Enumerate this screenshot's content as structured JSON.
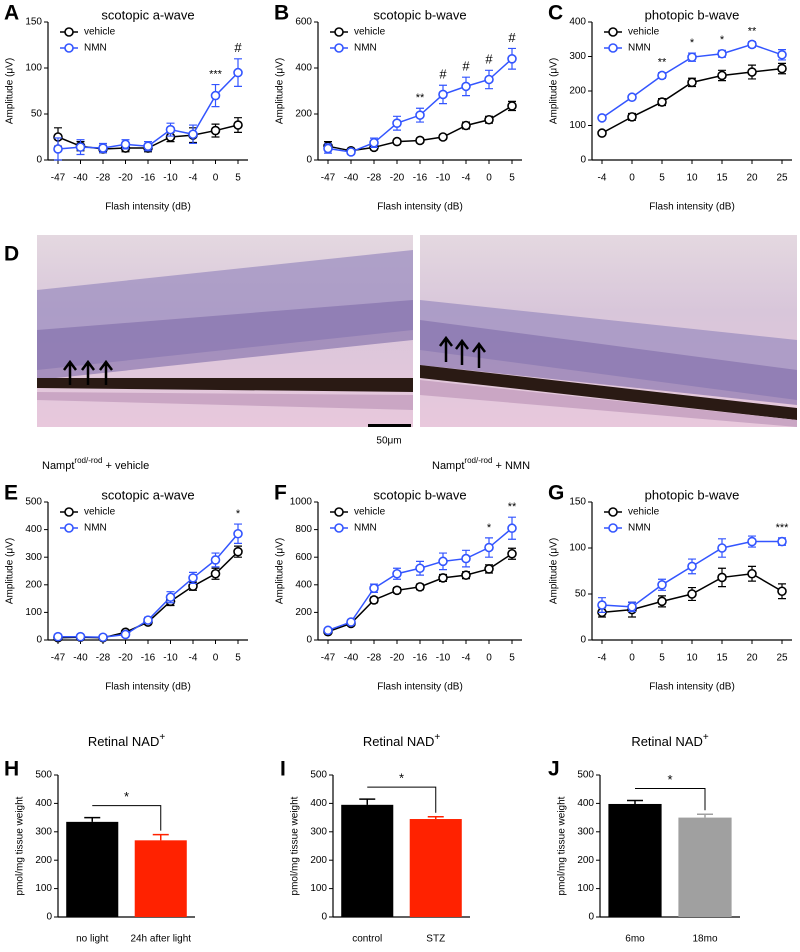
{
  "chart_data": [
    {
      "type": "line",
      "panel": "A",
      "title": "scotopic a-wave",
      "xlabel": "Flash intensity (dB)",
      "ylabel": "Amplitude (μV)",
      "categories": [
        -47,
        -40,
        -28,
        -20,
        -16,
        -10,
        -4,
        0,
        5
      ],
      "ylim": [
        0,
        150
      ],
      "yticks": [
        0,
        50,
        100,
        150
      ],
      "legend": "upper left",
      "series": [
        {
          "name": "vehicle",
          "color": "#000000",
          "values": [
            25,
            15,
            12,
            13,
            13,
            25,
            27,
            32,
            38
          ],
          "errors": [
            10,
            5,
            4,
            4,
            4,
            5,
            8,
            7,
            8
          ]
        },
        {
          "name": "NMN",
          "color": "#3355ff",
          "values": [
            12,
            14,
            13,
            17,
            15,
            33,
            28,
            70,
            95
          ],
          "errors": [
            12,
            8,
            5,
            5,
            5,
            7,
            10,
            12,
            15
          ]
        }
      ],
      "annotations": [
        {
          "at": 0,
          "text": "***"
        },
        {
          "at": 5,
          "text": "#"
        }
      ]
    },
    {
      "type": "line",
      "panel": "B",
      "title": "scotopic b-wave",
      "xlabel": "Flash intensity (dB)",
      "ylabel": "Amplitude (μV)",
      "categories": [
        -47,
        -40,
        -28,
        -20,
        -16,
        -10,
        -4,
        0,
        5
      ],
      "ylim": [
        0,
        600
      ],
      "yticks": [
        0,
        200,
        400,
        600
      ],
      "legend": "upper left",
      "series": [
        {
          "name": "vehicle",
          "color": "#000000",
          "values": [
            60,
            40,
            55,
            80,
            85,
            100,
            150,
            175,
            235
          ],
          "errors": [
            20,
            10,
            10,
            10,
            10,
            10,
            15,
            15,
            20
          ]
        },
        {
          "name": "NMN",
          "color": "#3355ff",
          "values": [
            50,
            35,
            75,
            160,
            195,
            285,
            320,
            350,
            440
          ],
          "errors": [
            20,
            10,
            20,
            30,
            30,
            40,
            40,
            40,
            45
          ]
        }
      ],
      "annotations": [
        {
          "at": -16,
          "text": "**"
        },
        {
          "at": -10,
          "text": "#"
        },
        {
          "at": -4,
          "text": "#"
        },
        {
          "at": 0,
          "text": "#"
        },
        {
          "at": 5,
          "text": "#"
        }
      ]
    },
    {
      "type": "line",
      "panel": "C",
      "title": "photopic b-wave",
      "xlabel": "Flash intensity (dB)",
      "ylabel": "Amplitude (μV)",
      "categories": [
        -4,
        0,
        5,
        10,
        15,
        20,
        25
      ],
      "ylim": [
        0,
        400
      ],
      "yticks": [
        0,
        100,
        200,
        300,
        400
      ],
      "legend": "upper left",
      "series": [
        {
          "name": "vehicle",
          "color": "#000000",
          "values": [
            78,
            125,
            168,
            225,
            245,
            255,
            265
          ],
          "errors": [
            5,
            10,
            10,
            12,
            15,
            20,
            15
          ]
        },
        {
          "name": "NMN",
          "color": "#3355ff",
          "values": [
            122,
            182,
            245,
            298,
            308,
            335,
            305
          ],
          "errors": [
            5,
            5,
            8,
            12,
            10,
            8,
            15
          ]
        }
      ],
      "annotations": [
        {
          "at": 5,
          "text": "**"
        },
        {
          "at": 10,
          "text": "*"
        },
        {
          "at": 15,
          "text": "*"
        },
        {
          "at": 20,
          "text": "**"
        }
      ]
    },
    {
      "type": "line",
      "panel": "E",
      "title": "scotopic a-wave",
      "xlabel": "Flash intensity (dB)",
      "ylabel": "Amplitude (μV)",
      "categories": [
        -47,
        -40,
        -28,
        -20,
        -16,
        -10,
        -4,
        0,
        5
      ],
      "ylim": [
        0,
        500
      ],
      "yticks": [
        0,
        100,
        200,
        300,
        400,
        500
      ],
      "legend": "upper left",
      "series": [
        {
          "name": "vehicle",
          "color": "#000000",
          "values": [
            8,
            10,
            8,
            28,
            65,
            140,
            195,
            240,
            320
          ],
          "errors": [
            5,
            5,
            5,
            5,
            8,
            15,
            15,
            20,
            20
          ]
        },
        {
          "name": "NMN",
          "color": "#3355ff",
          "values": [
            12,
            12,
            10,
            20,
            72,
            155,
            225,
            290,
            385
          ],
          "errors": [
            5,
            5,
            5,
            8,
            10,
            20,
            20,
            25,
            35
          ]
        }
      ],
      "annotations": [
        {
          "at": 5,
          "text": "*"
        }
      ]
    },
    {
      "type": "line",
      "panel": "F",
      "title": "scotopic b-wave",
      "xlabel": "Flash intensity (dB)",
      "ylabel": "Amplitude (μV)",
      "categories": [
        -47,
        -40,
        -28,
        -20,
        -16,
        -10,
        -4,
        0,
        5
      ],
      "ylim": [
        0,
        1000
      ],
      "yticks": [
        0,
        200,
        400,
        600,
        800,
        1000
      ],
      "legend": "upper left",
      "series": [
        {
          "name": "vehicle",
          "color": "#000000",
          "values": [
            60,
            120,
            290,
            360,
            385,
            450,
            470,
            515,
            625
          ],
          "errors": [
            10,
            10,
            20,
            20,
            20,
            25,
            25,
            30,
            40
          ]
        },
        {
          "name": "NMN",
          "color": "#3355ff",
          "values": [
            70,
            130,
            375,
            480,
            520,
            570,
            590,
            670,
            810
          ],
          "errors": [
            10,
            15,
            30,
            40,
            50,
            60,
            60,
            70,
            80
          ]
        }
      ],
      "annotations": [
        {
          "at": 0,
          "text": "*"
        },
        {
          "at": 5,
          "text": "**"
        }
      ]
    },
    {
      "type": "line",
      "panel": "G",
      "title": "photopic b-wave",
      "xlabel": "Flash intensity (dB)",
      "ylabel": "Amplitude (μV)",
      "categories": [
        -4,
        0,
        5,
        10,
        15,
        20,
        25
      ],
      "ylim": [
        0,
        150
      ],
      "yticks": [
        0,
        50,
        100,
        150
      ],
      "legend": "upper left",
      "series": [
        {
          "name": "vehicle",
          "color": "#000000",
          "values": [
            30,
            33,
            42,
            50,
            68,
            72,
            53
          ],
          "errors": [
            5,
            8,
            6,
            7,
            10,
            8,
            8
          ]
        },
        {
          "name": "NMN",
          "color": "#3355ff",
          "values": [
            38,
            36,
            60,
            80,
            100,
            107,
            107
          ],
          "errors": [
            8,
            5,
            6,
            8,
            10,
            6,
            4
          ]
        }
      ],
      "annotations": [
        {
          "at": 25,
          "text": "***"
        }
      ]
    },
    {
      "type": "bar",
      "panel": "H",
      "title": "Retinal NAD",
      "title_superscript": "+",
      "ylabel": "pmol/mg tissue weight",
      "categories": [
        "no light",
        "24h after light"
      ],
      "values": [
        335,
        270
      ],
      "errors": [
        15,
        20
      ],
      "colors": [
        "#000000",
        "#ff2200"
      ],
      "ylim": [
        0,
        500
      ],
      "yticks": [
        0,
        100,
        200,
        300,
        400,
        500
      ],
      "annotation": "*"
    },
    {
      "type": "bar",
      "panel": "I",
      "title": "Retinal NAD",
      "title_superscript": "+",
      "ylabel": "pmol/mg tissue weight",
      "categories": [
        "control",
        "STZ"
      ],
      "values": [
        395,
        345
      ],
      "errors": [
        20,
        8
      ],
      "colors": [
        "#000000",
        "#ff2200"
      ],
      "ylim": [
        0,
        500
      ],
      "yticks": [
        0,
        100,
        200,
        300,
        400,
        500
      ],
      "annotation": "*"
    },
    {
      "type": "bar",
      "panel": "J",
      "title": "Retinal NAD",
      "title_superscript": "+",
      "ylabel": "pmol/mg tissue weight",
      "categories": [
        "6mo",
        "18mo"
      ],
      "values": [
        398,
        350
      ],
      "errors": [
        12,
        12
      ],
      "colors": [
        "#000000",
        "#a0a0a0"
      ],
      "ylim": [
        0,
        500
      ],
      "yticks": [
        0,
        100,
        200,
        300,
        400,
        500
      ],
      "annotation": "*"
    }
  ],
  "image_panel": {
    "panel": "D",
    "scale_bar": "50μm",
    "captions": [
      {
        "base": "Nampt",
        "sup": "rod/-rod",
        "rest": " + vehicle"
      },
      {
        "base": "Nampt",
        "sup": "rod/-rod",
        "rest": " + NMN"
      }
    ]
  }
}
